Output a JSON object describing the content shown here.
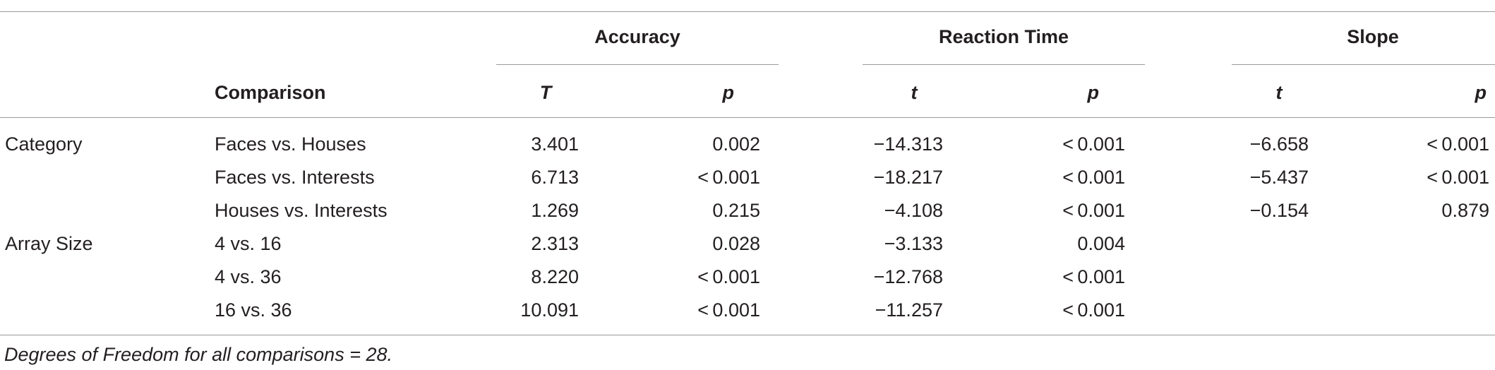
{
  "table": {
    "group_headers": {
      "accuracy": "Accuracy",
      "reaction_time": "Reaction Time",
      "slope": "Slope"
    },
    "column_headers": {
      "comparison": "Comparison",
      "acc_stat": "T",
      "acc_p": "p",
      "rt_stat": "t",
      "rt_p": "p",
      "slope_stat": "t",
      "slope_p": "p"
    },
    "rows": [
      {
        "factor": "Category",
        "comparison": "Faces vs. Houses",
        "acc_t": "3.401",
        "acc_p": "0.002",
        "rt_t": "−14.313",
        "rt_p": "< 0.001",
        "slope_t": "−6.658",
        "slope_p": "< 0.001"
      },
      {
        "factor": "",
        "comparison": "Faces vs. Interests",
        "acc_t": "6.713",
        "acc_p": "< 0.001",
        "rt_t": "−18.217",
        "rt_p": "< 0.001",
        "slope_t": "−5.437",
        "slope_p": "< 0.001"
      },
      {
        "factor": "",
        "comparison": "Houses vs. Interests",
        "acc_t": "1.269",
        "acc_p": "0.215",
        "rt_t": "−4.108",
        "rt_p": "< 0.001",
        "slope_t": "−0.154",
        "slope_p": "0.879"
      },
      {
        "factor": "Array Size",
        "comparison": "4 vs. 16",
        "acc_t": "2.313",
        "acc_p": "0.028",
        "rt_t": "−3.133",
        "rt_p": "0.004",
        "slope_t": "",
        "slope_p": ""
      },
      {
        "factor": "",
        "comparison": "4 vs. 36",
        "acc_t": "8.220",
        "acc_p": "< 0.001",
        "rt_t": "−12.768",
        "rt_p": "< 0.001",
        "slope_t": "",
        "slope_p": ""
      },
      {
        "factor": "",
        "comparison": "16 vs. 36",
        "acc_t": "10.091",
        "acc_p": "< 0.001",
        "rt_t": "−11.257",
        "rt_p": "< 0.001",
        "slope_t": "",
        "slope_p": ""
      }
    ],
    "footnote": "Degrees of Freedom for all comparisons = 28."
  }
}
